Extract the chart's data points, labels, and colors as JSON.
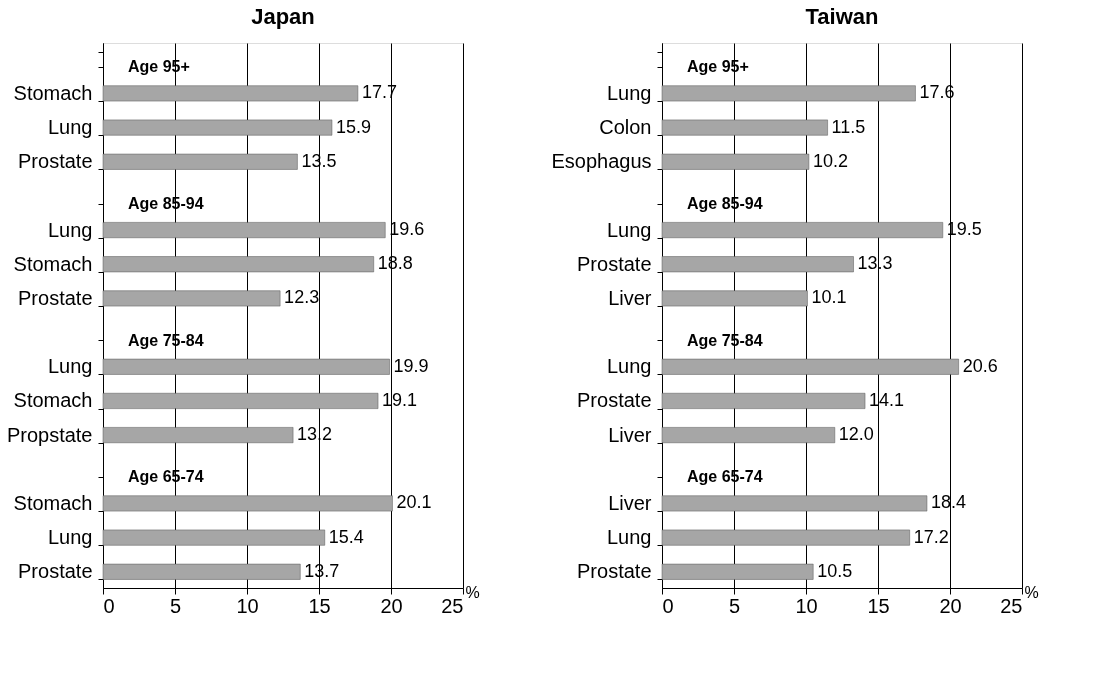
{
  "chart_data": [
    {
      "type": "bar",
      "orientation": "horizontal",
      "title": "Japan",
      "xlabel": "%",
      "color": "#a6a6a6",
      "grid": "x",
      "data_labels": true,
      "categories": [
        null,
        "Stomach",
        "Lung",
        "Prostate",
        null,
        "Lung",
        "Stomach",
        "Prostate",
        null,
        "Lung",
        "Stomach",
        "Propstate",
        null,
        "Stomach",
        "Lung",
        "Prostate"
      ],
      "values": [
        null,
        17.7,
        15.9,
        13.5,
        null,
        19.6,
        18.8,
        12.3,
        null,
        19.9,
        19.1,
        13.2,
        null,
        20.1,
        15.4,
        13.7
      ],
      "annotations": [
        "Age 95+",
        "Age 85-94",
        "Age 75-84",
        "Age 65-74"
      ],
      "xlim": [
        0,
        25
      ],
      "xticks": [
        0,
        5,
        10,
        15,
        20,
        25
      ]
    },
    {
      "type": "bar",
      "orientation": "horizontal",
      "title": "Taiwan",
      "xlabel": "%",
      "color": "#a6a6a6",
      "grid": "x",
      "value_labels": [
        null,
        "17.6",
        "11.5",
        "10.2",
        null,
        "19.5",
        "13.3",
        "10.1",
        null,
        "20.6",
        "14.1",
        "12.0",
        null,
        "18.4",
        "17.2",
        "10.5"
      ],
      "categories": [
        null,
        "Lung",
        "Colon",
        "Esophagus",
        null,
        "Lung",
        "Prostate",
        "Liver",
        null,
        "Lung",
        "Prostate",
        "Liver",
        null,
        "Liver",
        "Lung",
        "Prostate"
      ],
      "values": [
        null,
        17.6,
        11.5,
        10.2,
        null,
        19.5,
        13.3,
        10.1,
        null,
        20.6,
        14.1,
        12.0,
        null,
        18.4,
        17.2,
        10.5
      ],
      "annotations": [
        "Age 95+",
        "Age 85-94",
        "Age 75-84",
        "Age 65-74"
      ],
      "xlim": [
        0,
        25
      ],
      "xticks": [
        0,
        5,
        10,
        15,
        20,
        25
      ]
    }
  ]
}
